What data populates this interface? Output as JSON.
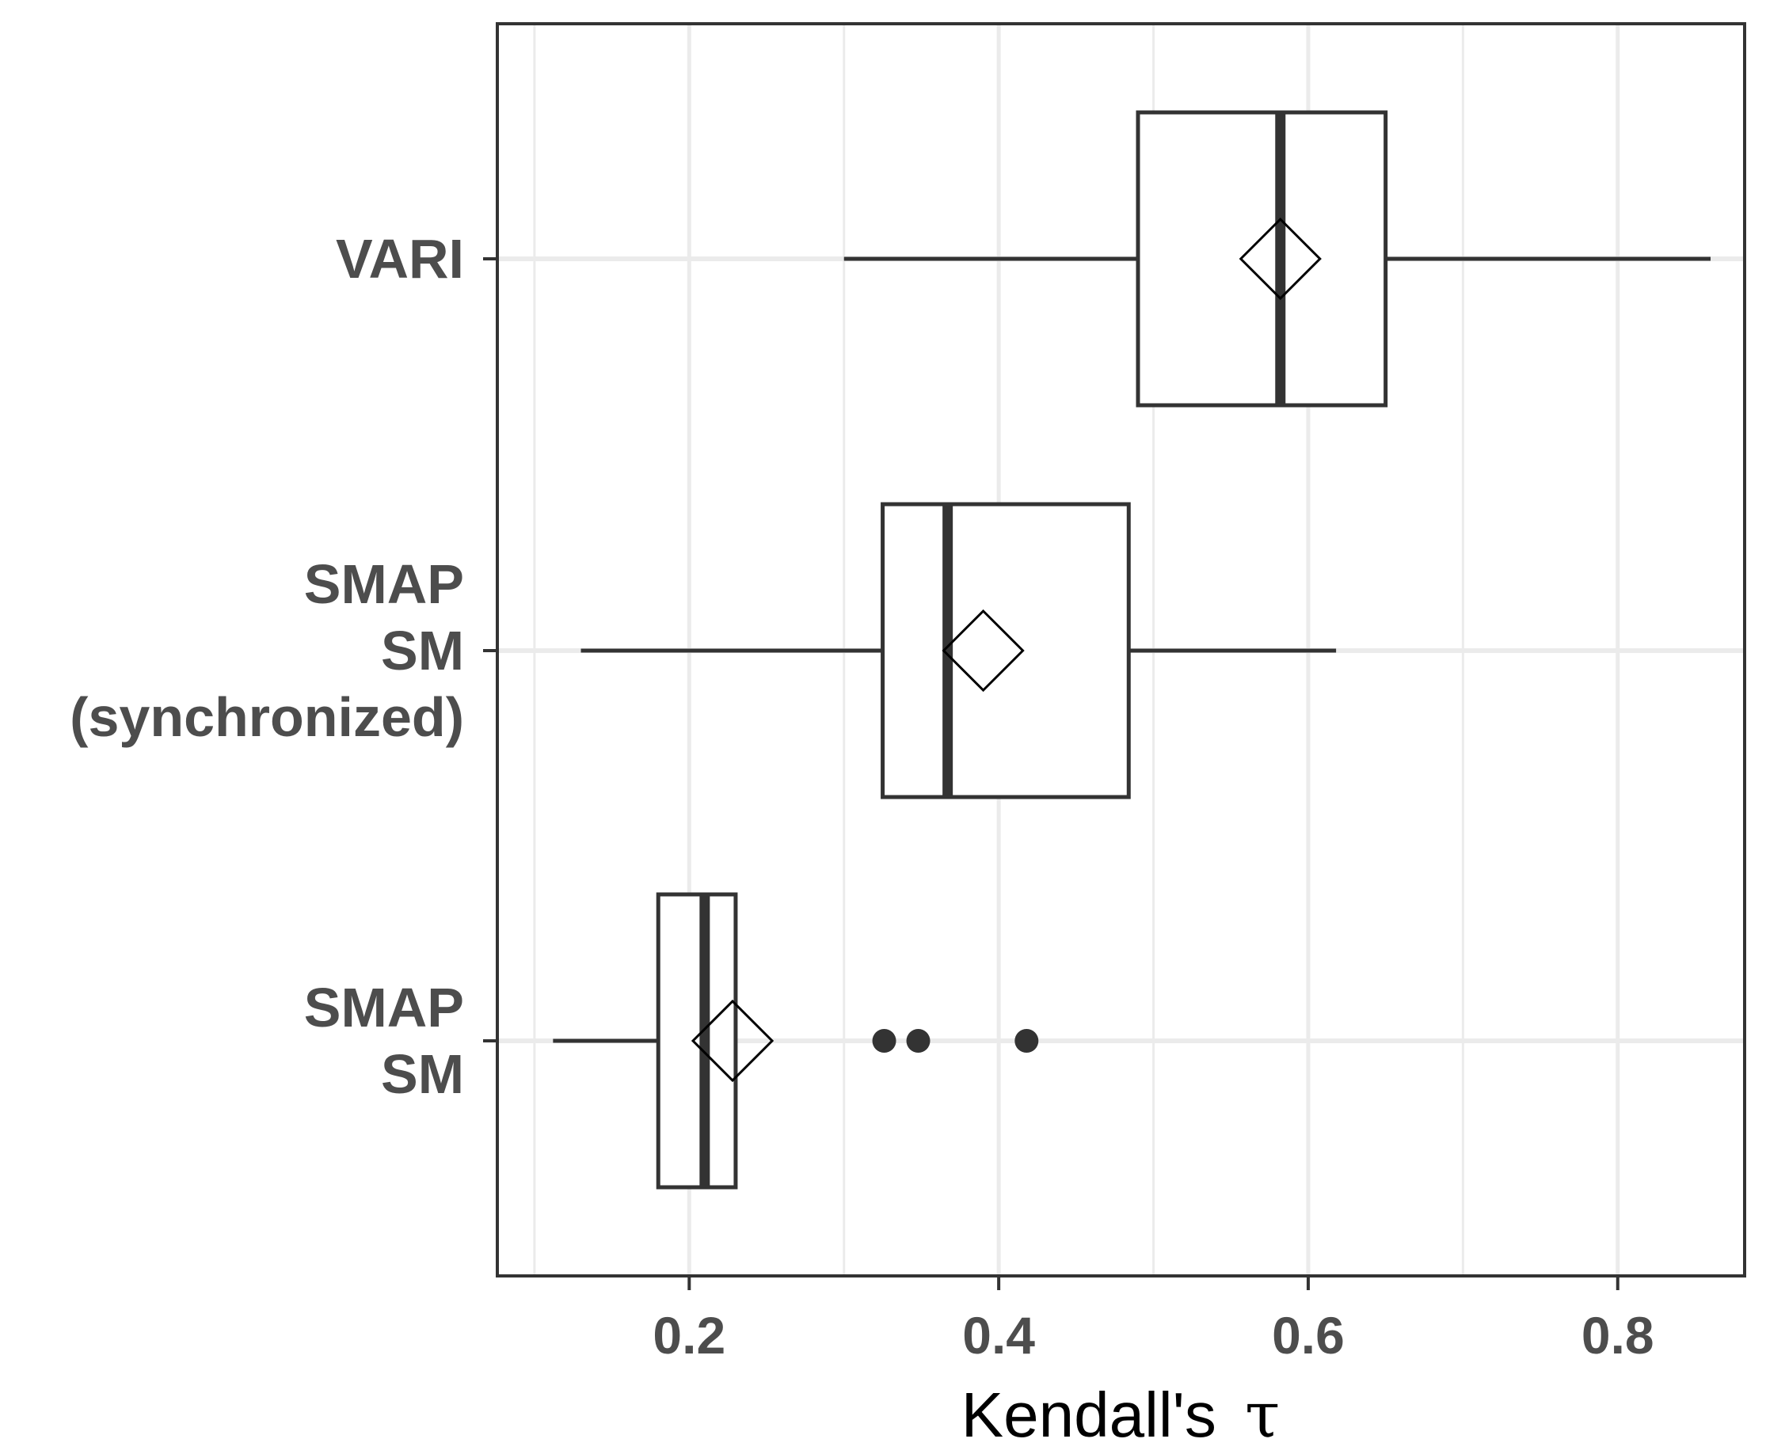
{
  "chart_data": {
    "type": "boxplot",
    "orientation": "horizontal",
    "xlabel": "Kendall's",
    "xlabel_symbol": "τ",
    "xlim": [
      0.076,
      0.882
    ],
    "x_ticks": [
      {
        "value": 0.2,
        "label": "0.2"
      },
      {
        "value": 0.4,
        "label": "0.4"
      },
      {
        "value": 0.6,
        "label": "0.6"
      },
      {
        "value": 0.8,
        "label": "0.8"
      }
    ],
    "x_minor_gridlines": [
      0.1,
      0.3,
      0.5,
      0.7
    ],
    "grid": true,
    "categories": [
      {
        "id": "vari",
        "label_lines": [
          "VARI"
        ],
        "whisker_low": 0.3,
        "q1": 0.49,
        "median": 0.582,
        "q3": 0.65,
        "whisker_high": 0.86,
        "mean": 0.582,
        "outliers": []
      },
      {
        "id": "smap-sm-synchronized",
        "label_lines": [
          "SMAP",
          "SM",
          "(synchronized)"
        ],
        "whisker_low": 0.13,
        "q1": 0.325,
        "median": 0.367,
        "q3": 0.484,
        "whisker_high": 0.618,
        "mean": 0.39,
        "outliers": []
      },
      {
        "id": "smap-sm",
        "label_lines": [
          "SMAP",
          "SM"
        ],
        "whisker_low": 0.112,
        "q1": 0.18,
        "median": 0.21,
        "q3": 0.23,
        "whisker_high": 0.23,
        "mean": 0.228,
        "outliers": [
          0.326,
          0.348,
          0.418
        ]
      }
    ],
    "colors": {
      "panel_border": "#333333",
      "gridline": "#ebebeb",
      "box_stroke": "#333333",
      "tick_label": "#4d4d4d",
      "axis_title": "#000000",
      "outlier": "#333333"
    }
  }
}
